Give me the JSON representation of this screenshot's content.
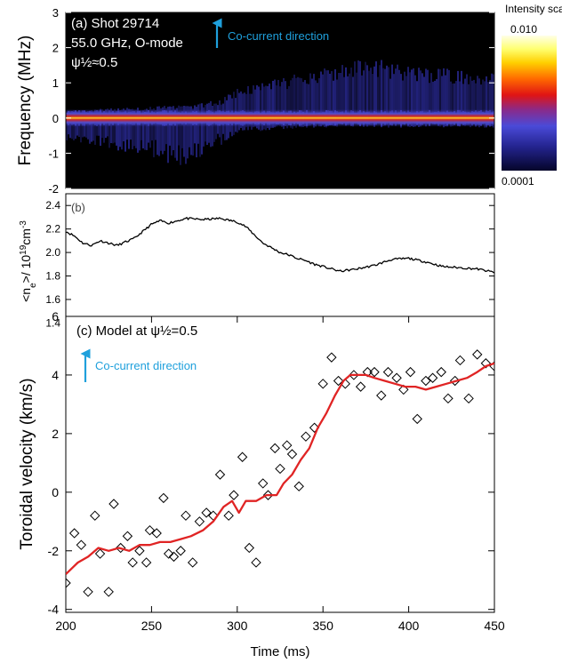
{
  "colors": {
    "co_current_arrow": "#1fa0dc",
    "model_line": "#e02424",
    "spectrogram_bg": "#000000"
  },
  "chart_data": [
    {
      "id": "a",
      "type": "heatmap",
      "panel_label": "(a) Shot 29714",
      "lines": [
        "55.0 GHz, O-mode",
        "ψ½≈0.5"
      ],
      "annotation": "Co-current direction",
      "ylabel": "Frequency (MHz)",
      "ylim": [
        -2,
        3
      ],
      "xlim": [
        200,
        450
      ],
      "yticks": [
        "-2",
        "-1",
        "0",
        "1",
        "2",
        "3"
      ],
      "colorbar": {
        "title": "Intensity scale",
        "max_label": "0.010",
        "min_label": "0.0001"
      },
      "upper_feature_envelope": {
        "time": [
          200,
          225,
          250,
          275,
          290,
          300,
          320,
          340,
          360,
          380,
          400,
          420,
          440,
          450
        ],
        "freq": [
          0.2,
          0.25,
          0.3,
          0.35,
          0.5,
          0.8,
          1.0,
          1.2,
          1.45,
          1.55,
          1.35,
          1.3,
          1.25,
          1.2
        ]
      },
      "lower_feature_envelope": {
        "time": [
          200,
          225,
          250,
          265,
          275,
          290,
          300,
          320,
          350,
          400,
          450
        ],
        "freq": [
          -0.6,
          -0.8,
          -1.0,
          -1.3,
          -1.1,
          -0.7,
          -0.4,
          -0.3,
          -0.25,
          -0.25,
          -0.25
        ]
      }
    },
    {
      "id": "b",
      "type": "line",
      "panel_label": "(b)",
      "ylabel_html": "<n_e>/ 10^19 cm^-3",
      "ylabel_parts": {
        "open": "<n",
        "sub": "e",
        "mid": ">/ 10",
        "sup1": "19",
        "unit": "cm",
        "sup2": "-3"
      },
      "ylim": [
        1.35,
        2.5
      ],
      "yticks": [
        "2.4",
        "2.2",
        "2.0",
        "1.8",
        "1.6",
        "1.4"
      ],
      "xlim": [
        200,
        450
      ],
      "x": [
        200,
        205,
        210,
        215,
        220,
        230,
        240,
        245,
        250,
        255,
        260,
        270,
        280,
        290,
        300,
        305,
        310,
        315,
        320,
        325,
        330,
        335,
        340,
        345,
        350,
        360,
        370,
        380,
        390,
        400,
        410,
        420,
        430,
        440,
        450
      ],
      "y": [
        2.18,
        2.14,
        2.08,
        2.06,
        2.1,
        2.06,
        2.12,
        2.18,
        2.24,
        2.27,
        2.25,
        2.29,
        2.28,
        2.29,
        2.26,
        2.22,
        2.15,
        2.08,
        2.04,
        2.0,
        1.98,
        1.95,
        1.93,
        1.9,
        1.88,
        1.84,
        1.86,
        1.89,
        1.94,
        1.95,
        1.92,
        1.88,
        1.87,
        1.86,
        1.83
      ]
    },
    {
      "id": "c",
      "type": "scatter",
      "panel_label": "(c) Model at ψ½=0.5",
      "annotation": "Co-current direction",
      "ylabel": "Toroidal velocity (km/s)",
      "xlabel": "Time (ms)",
      "ylim": [
        -4.1,
        6
      ],
      "yticks": [
        "-4",
        "-2",
        "0",
        "2",
        "4",
        "6"
      ],
      "xlim": [
        200,
        450
      ],
      "xticks": [
        "200",
        "250",
        "300",
        "350",
        "400",
        "450"
      ],
      "scatter_x": [
        200,
        205,
        209,
        213,
        217,
        220,
        225,
        228,
        232,
        236,
        239,
        243,
        247,
        249,
        253,
        257,
        260,
        263,
        267,
        270,
        274,
        278,
        282,
        286,
        290,
        295,
        298,
        303,
        307,
        311,
        315,
        318,
        322,
        325,
        329,
        332,
        336,
        340,
        345,
        350,
        355,
        359,
        363,
        368,
        372,
        376,
        380,
        384,
        388,
        393,
        397,
        401,
        405,
        410,
        414,
        419,
        423,
        427,
        430,
        435,
        440,
        445,
        450
      ],
      "scatter_y": [
        -3.1,
        -1.4,
        -1.8,
        -3.4,
        -0.8,
        -2.1,
        -3.4,
        -0.4,
        -1.9,
        -1.5,
        -2.4,
        -2.0,
        -2.4,
        -1.3,
        -1.4,
        -0.2,
        -2.1,
        -2.2,
        -2.0,
        -0.8,
        -2.4,
        -1.0,
        -0.7,
        -0.8,
        0.6,
        -0.8,
        -0.1,
        1.2,
        -1.9,
        -2.4,
        0.3,
        -0.1,
        1.5,
        0.8,
        1.6,
        1.3,
        0.2,
        1.9,
        2.2,
        3.7,
        4.6,
        3.8,
        3.7,
        4.0,
        3.6,
        4.1,
        4.1,
        3.3,
        4.1,
        3.9,
        3.5,
        4.1,
        2.5,
        3.8,
        3.9,
        4.1,
        3.2,
        3.8,
        4.5,
        3.2,
        4.7,
        4.4,
        4.3
      ],
      "model_x": [
        200,
        207,
        213,
        219,
        225,
        231,
        237,
        243,
        249,
        255,
        261,
        267,
        273,
        280,
        286,
        292,
        297,
        301,
        305,
        311,
        317,
        323,
        327,
        332,
        337,
        342,
        347,
        352,
        357,
        362,
        366,
        370,
        375,
        380,
        386,
        392,
        398,
        404,
        410,
        416,
        422,
        428,
        434,
        440,
        445,
        450
      ],
      "model_y": [
        -2.8,
        -2.4,
        -2.2,
        -1.9,
        -2.0,
        -1.9,
        -2.0,
        -1.8,
        -1.8,
        -1.7,
        -1.7,
        -1.6,
        -1.5,
        -1.3,
        -1.0,
        -0.5,
        -0.3,
        -0.7,
        -0.3,
        -0.3,
        -0.1,
        -0.1,
        0.3,
        0.6,
        1.1,
        1.5,
        2.2,
        2.7,
        3.3,
        3.8,
        4.0,
        4.0,
        4.0,
        3.9,
        3.8,
        3.7,
        3.6,
        3.6,
        3.5,
        3.6,
        3.7,
        3.8,
        3.9,
        4.1,
        4.3,
        4.4
      ]
    }
  ]
}
